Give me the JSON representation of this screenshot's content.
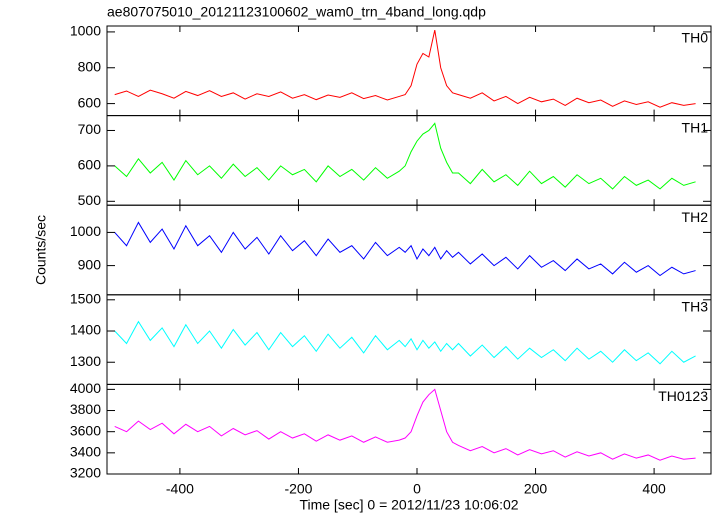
{
  "title": "ae807075010_20121123100602_wam0_trn_4band_long.qdp",
  "xlabel": "Time [sec] 0 = 2012/11/23 10:06:02",
  "ylabel": "Counts/sec",
  "chart_data": [
    {
      "type": "line",
      "xlim": [
        -523,
        496
      ],
      "xticks": [
        -400,
        -200,
        0,
        200,
        400
      ],
      "ylim": [
        533,
        1033
      ],
      "yticks": [
        600,
        800,
        1000
      ],
      "x": [
        -510,
        -490,
        -470,
        -450,
        -430,
        -410,
        -390,
        -370,
        -350,
        -330,
        -310,
        -290,
        -270,
        -250,
        -230,
        -210,
        -190,
        -170,
        -150,
        -130,
        -110,
        -90,
        -70,
        -50,
        -30,
        -20,
        -10,
        0,
        10,
        20,
        30,
        40,
        50,
        60,
        70,
        90,
        110,
        130,
        150,
        170,
        190,
        210,
        230,
        250,
        270,
        290,
        310,
        330,
        350,
        370,
        390,
        410,
        430,
        450,
        470
      ],
      "series": [
        {
          "name": "TH0",
          "color": "#ff0000",
          "values": [
            650,
            670,
            640,
            675,
            655,
            630,
            668,
            645,
            672,
            640,
            660,
            625,
            655,
            640,
            665,
            630,
            650,
            622,
            648,
            635,
            660,
            628,
            645,
            620,
            640,
            650,
            700,
            820,
            880,
            860,
            1010,
            800,
            700,
            660,
            650,
            630,
            660,
            615,
            640,
            600,
            635,
            610,
            625,
            590,
            630,
            605,
            620,
            585,
            615,
            595,
            610,
            580,
            605,
            590,
            600
          ]
        }
      ]
    },
    {
      "type": "line",
      "xlim": [
        -523,
        496
      ],
      "xticks": [
        -400,
        -200,
        0,
        200,
        400
      ],
      "ylim": [
        489,
        742
      ],
      "yticks": [
        500,
        600,
        700
      ],
      "x": [
        -510,
        -490,
        -470,
        -450,
        -430,
        -410,
        -390,
        -370,
        -350,
        -330,
        -310,
        -290,
        -270,
        -250,
        -230,
        -210,
        -190,
        -170,
        -150,
        -130,
        -110,
        -90,
        -70,
        -50,
        -30,
        -20,
        -10,
        0,
        10,
        20,
        30,
        40,
        50,
        60,
        70,
        90,
        110,
        130,
        150,
        170,
        190,
        210,
        230,
        250,
        270,
        290,
        310,
        330,
        350,
        370,
        390,
        410,
        430,
        450,
        470
      ],
      "series": [
        {
          "name": "TH1",
          "color": "#00ff00",
          "values": [
            600,
            570,
            620,
            580,
            610,
            560,
            615,
            575,
            600,
            565,
            605,
            570,
            595,
            560,
            600,
            575,
            590,
            555,
            600,
            570,
            590,
            560,
            595,
            565,
            585,
            600,
            640,
            670,
            690,
            700,
            720,
            650,
            610,
            580,
            580,
            550,
            590,
            555,
            575,
            545,
            585,
            550,
            570,
            540,
            575,
            550,
            565,
            535,
            570,
            545,
            560,
            535,
            565,
            545,
            555
          ]
        }
      ]
    },
    {
      "type": "line",
      "xlim": [
        -523,
        496
      ],
      "xticks": [
        -400,
        -200,
        0,
        200,
        400
      ],
      "ylim": [
        812,
        1082
      ],
      "yticks": [
        900,
        1000
      ],
      "x": [
        -510,
        -490,
        -470,
        -450,
        -430,
        -410,
        -390,
        -370,
        -350,
        -330,
        -310,
        -290,
        -270,
        -250,
        -230,
        -210,
        -190,
        -170,
        -150,
        -130,
        -110,
        -90,
        -70,
        -50,
        -30,
        -20,
        -10,
        0,
        10,
        20,
        30,
        40,
        50,
        60,
        70,
        90,
        110,
        130,
        150,
        170,
        190,
        210,
        230,
        250,
        270,
        290,
        310,
        330,
        350,
        370,
        390,
        410,
        430,
        450,
        470
      ],
      "series": [
        {
          "name": "TH2",
          "color": "#0000ff",
          "values": [
            1000,
            960,
            1030,
            970,
            1010,
            950,
            1020,
            960,
            990,
            940,
            1000,
            950,
            985,
            935,
            990,
            945,
            975,
            930,
            980,
            940,
            960,
            920,
            970,
            930,
            955,
            940,
            960,
            920,
            950,
            930,
            955,
            920,
            945,
            925,
            940,
            905,
            935,
            900,
            925,
            890,
            930,
            895,
            915,
            885,
            920,
            890,
            905,
            875,
            910,
            880,
            900,
            870,
            895,
            875,
            885
          ]
        }
      ]
    },
    {
      "type": "line",
      "xlim": [
        -523,
        496
      ],
      "xticks": [
        -400,
        -200,
        0,
        200,
        400
      ],
      "ylim": [
        1229,
        1516
      ],
      "yticks": [
        1300,
        1400,
        1500
      ],
      "x": [
        -510,
        -490,
        -470,
        -450,
        -430,
        -410,
        -390,
        -370,
        -350,
        -330,
        -310,
        -290,
        -270,
        -250,
        -230,
        -210,
        -190,
        -170,
        -150,
        -130,
        -110,
        -90,
        -70,
        -50,
        -30,
        -20,
        -10,
        0,
        10,
        20,
        30,
        40,
        50,
        60,
        70,
        90,
        110,
        130,
        150,
        170,
        190,
        210,
        230,
        250,
        270,
        290,
        310,
        330,
        350,
        370,
        390,
        410,
        430,
        450,
        470
      ],
      "series": [
        {
          "name": "TH3",
          "color": "#00ffff",
          "values": [
            1400,
            1360,
            1430,
            1370,
            1410,
            1350,
            1420,
            1360,
            1400,
            1345,
            1405,
            1355,
            1395,
            1340,
            1395,
            1350,
            1385,
            1335,
            1390,
            1345,
            1380,
            1330,
            1385,
            1340,
            1370,
            1350,
            1375,
            1340,
            1370,
            1345,
            1365,
            1335,
            1360,
            1340,
            1360,
            1320,
            1355,
            1315,
            1350,
            1310,
            1345,
            1315,
            1340,
            1305,
            1345,
            1310,
            1335,
            1300,
            1340,
            1305,
            1330,
            1295,
            1335,
            1300,
            1320
          ]
        }
      ]
    },
    {
      "type": "line",
      "xlim": [
        -523,
        496
      ],
      "xticks": [
        -400,
        -200,
        0,
        200,
        400
      ],
      "ylim": [
        3200,
        4047
      ],
      "yticks": [
        3200,
        3400,
        3600,
        3800,
        4000
      ],
      "x": [
        -510,
        -490,
        -470,
        -450,
        -430,
        -410,
        -390,
        -370,
        -350,
        -330,
        -310,
        -290,
        -270,
        -250,
        -230,
        -210,
        -190,
        -170,
        -150,
        -130,
        -110,
        -90,
        -70,
        -50,
        -30,
        -20,
        -10,
        0,
        10,
        20,
        30,
        40,
        50,
        60,
        70,
        90,
        110,
        130,
        150,
        170,
        190,
        210,
        230,
        250,
        270,
        290,
        310,
        330,
        350,
        370,
        390,
        410,
        430,
        450,
        470
      ],
      "series": [
        {
          "name": "TH0123",
          "color": "#ff00ff",
          "values": [
            3650,
            3600,
            3700,
            3620,
            3680,
            3580,
            3670,
            3600,
            3650,
            3560,
            3630,
            3570,
            3610,
            3530,
            3600,
            3540,
            3580,
            3510,
            3570,
            3520,
            3560,
            3500,
            3550,
            3500,
            3520,
            3540,
            3600,
            3750,
            3880,
            3950,
            4000,
            3800,
            3600,
            3500,
            3470,
            3420,
            3460,
            3400,
            3440,
            3380,
            3430,
            3390,
            3420,
            3360,
            3410,
            3370,
            3400,
            3340,
            3390,
            3350,
            3380,
            3330,
            3370,
            3340,
            3350
          ]
        }
      ]
    }
  ]
}
